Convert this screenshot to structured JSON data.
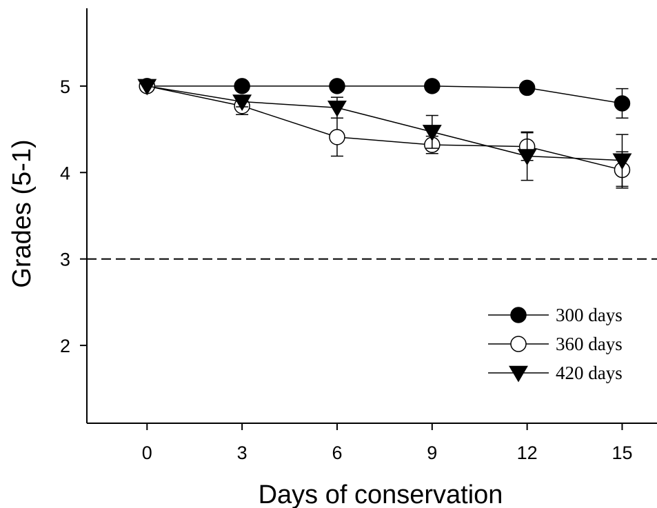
{
  "chart_data": {
    "type": "line",
    "title": "",
    "xlabel": "Days of conservation",
    "ylabel": "Grades (5-1)",
    "x": [
      0,
      3,
      6,
      9,
      12,
      15
    ],
    "xticks": [
      "0",
      "3",
      "6",
      "9",
      "12",
      "15"
    ],
    "yticks": [
      "2",
      "3",
      "4",
      "5"
    ],
    "xlim": [
      -1.9,
      16.1
    ],
    "ylim": [
      1.1,
      5.9
    ],
    "grid": false,
    "reference_line": {
      "y": 3,
      "style": "dashed"
    },
    "legend_position": "bottom-right",
    "series": [
      {
        "name": "300 days",
        "marker": "filled-circle",
        "values": [
          5.0,
          5.0,
          5.0,
          5.0,
          4.98,
          4.8
        ],
        "errors": [
          0,
          0,
          0,
          0,
          0,
          0.17
        ]
      },
      {
        "name": "360 days",
        "marker": "open-circle",
        "values": [
          5.0,
          4.77,
          4.41,
          4.32,
          4.3,
          4.03
        ],
        "errors": [
          0,
          0.1,
          0.22,
          0.1,
          0.16,
          0.21
        ]
      },
      {
        "name": "420 days",
        "marker": "filled-triangle-down",
        "values": [
          5.0,
          4.82,
          4.75,
          4.47,
          4.19,
          4.14
        ],
        "errors": [
          0,
          0.06,
          0.12,
          0.19,
          0.28,
          0.3
        ]
      }
    ]
  }
}
